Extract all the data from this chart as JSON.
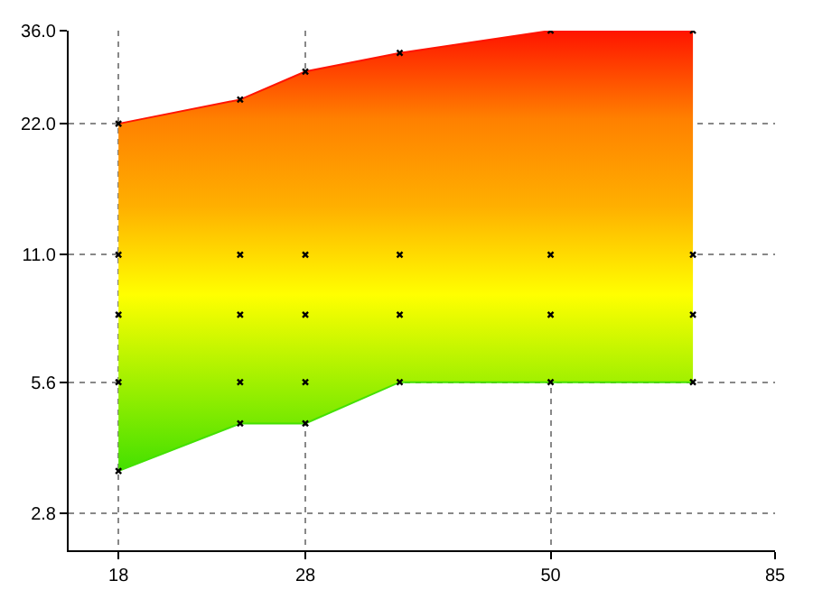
{
  "chart_data": {
    "type": "scatter",
    "series": [
      {
        "type": "line",
        "marker": "none",
        "color": "#44e000",
        "x": [
          18,
          24,
          28,
          35,
          50,
          70
        ],
        "values": [
          3.5,
          4.5,
          4.5,
          5.6,
          5.6,
          5.6
        ]
      },
      {
        "type": "area",
        "marker": "none",
        "x": [
          18,
          24,
          28,
          35,
          50,
          70
        ],
        "values": [
          22,
          25,
          29,
          32,
          36,
          36
        ],
        "colors": [
          "#44e000",
          "#a0f000",
          "#ffff00",
          "#ffb000",
          "#ff8000",
          "#ff1400"
        ]
      },
      {
        "color": "#000000",
        "x": [
          18,
          18,
          18,
          18,
          18,
          24,
          24,
          24,
          24,
          24,
          28,
          28,
          28,
          28,
          28,
          35,
          35,
          35,
          35,
          50,
          50,
          50,
          50,
          70,
          70,
          70,
          70
        ],
        "values": [
          22,
          11,
          8,
          5.6,
          3.5,
          25,
          11,
          8,
          5.6,
          4.5,
          29,
          11,
          8,
          5.6,
          4.5,
          32,
          11,
          8,
          5.6,
          36,
          11,
          8,
          5.6,
          36,
          11,
          8,
          5.6
        ]
      }
    ],
    "log": "xy",
    "marker": "cross",
    "grid": true,
    "xlim": [
      16,
      85
    ],
    "xticks": [
      18,
      28,
      50,
      85
    ],
    "ylim": [
      2.3,
      36
    ],
    "yticks": [
      {
        "value": 2.8,
        "label": "2.8"
      },
      {
        "value": 5.6,
        "label": "5.6"
      },
      {
        "value": 11,
        "label": "11.0"
      },
      {
        "value": 22,
        "label": "22.0"
      },
      {
        "value": 36,
        "label": "36.0"
      }
    ]
  }
}
